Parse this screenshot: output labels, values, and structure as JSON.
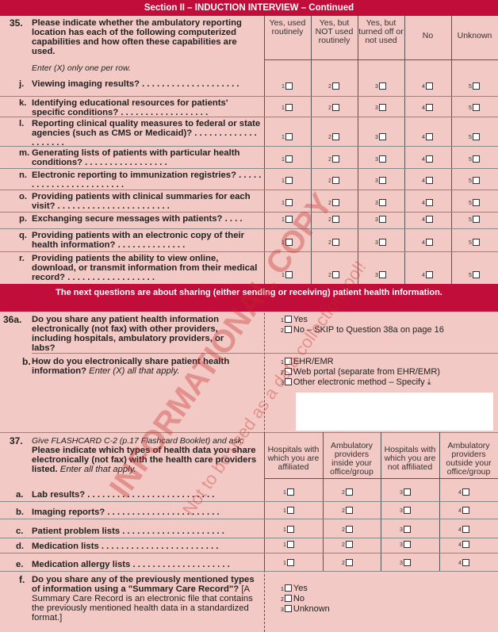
{
  "header": {
    "title": "Section II  –  INDUCTION INTERVIEW  – Continued"
  },
  "q35": {
    "number": "35.",
    "text": "Please indicate whether the ambulatory reporting location has each of the following computerized capabilities and how often these capabilities are used.",
    "instruction": "Enter (X) only one per row.",
    "columns": [
      "Yes, used routinely",
      "Yes, but NOT used routinely",
      "Yes, but turned off or not used",
      "No",
      "Unknown"
    ],
    "rows": [
      {
        "letter": "j.",
        "text": "Viewing imaging results? . . . . . . . . . . . . . . . . . . . ."
      },
      {
        "letter": "k.",
        "text": "Identifying educational resources for patients' specific conditions? . . . . . . . . . . . . . . . . . ."
      },
      {
        "letter": "l.",
        "text": "Reporting clinical quality measures to federal or state agencies (such as CMS or Medicaid)? . . . . . . . . . . . . . . . . . . . ."
      },
      {
        "letter": "m.",
        "text": "Generating lists of patients with particular health conditions? . . . . . . . . . . . . . . . . ."
      },
      {
        "letter": "n.",
        "text": "Electronic reporting to immunization registries? . . . . . . . . . . . . . . . . . . . . . . . ."
      },
      {
        "letter": "o.",
        "text": "Providing patients with clinical summaries for each visit? . . . . . . . . . . . . . . . . . . . . . . ."
      },
      {
        "letter": "p.",
        "text": "Exchanging secure messages with patients? . . . ."
      },
      {
        "letter": "q.",
        "text": "Providing patients with an electronic copy of their health information? . . . . . . . . . . . . . ."
      },
      {
        "letter": "r.",
        "text": "Providing patients the ability to view online, download, or transmit information from their medical record? . . . . . . . . . . . . . . . . . ."
      }
    ]
  },
  "banner": {
    "text": "The next questions are about sharing (either sending or receiving) patient health information."
  },
  "q36a": {
    "number": "36a.",
    "text": "Do you share any patient health information electronically (not fax) with other providers, including hospitals, ambulatory providers, or labs?",
    "options": [
      {
        "code": "1",
        "label": "Yes"
      },
      {
        "code": "2",
        "label": "No – SKIP to Question 38a on page 16"
      }
    ]
  },
  "q36b": {
    "number": "b.",
    "text": "How do you electronically share patient health information?",
    "instruction": "Enter (X) all that apply.",
    "options": [
      {
        "code": "1",
        "label": "EHR/EMR"
      },
      {
        "code": "2",
        "label": "Web portal (separate from EHR/EMR)"
      },
      {
        "code": "3",
        "label": "Other electronic method – Specify ⤓"
      }
    ]
  },
  "q37": {
    "number": "37.",
    "intro": "Give FLASHCARD C-2 (p.17 Flashcard Booklet) and ask:",
    "text": "Please indicate which types of health data you share electronically (not fax) with the health care providers listed.",
    "instruction": "Enter all that apply.",
    "columns": [
      "Hospitals with which you are affiliated",
      "Ambulatory providers inside your office/group",
      "Hospitals with which you are not affiliated",
      "Ambulatory providers outside your office/group"
    ],
    "rows": [
      {
        "letter": "a.",
        "text": "Lab results? . . . . . . . . . . . . . . . . . . . . . . . . . ."
      },
      {
        "letter": "b.",
        "text": "Imaging reports? . . . . . . . . . . . . . . . . . . . . . . ."
      },
      {
        "letter": "c.",
        "text": "Patient problem lists . . . . . . . . . . . . . . . . . . . . ."
      },
      {
        "letter": "d.",
        "text": "Medication lists . . . . . . . . . . . . . . . . . . . . . . . ."
      },
      {
        "letter": "e.",
        "text": "Medication allergy lists . . . . . . . . . . . . . . . . . . . ."
      }
    ]
  },
  "q37f": {
    "letter": "f.",
    "text": "Do you share any of the previously mentioned types of information using a \"Summary Care Record\"?",
    "note": "[A Summary Care Record is an electronic file that contains the previously mentioned health data in a standardized format.]",
    "options": [
      {
        "code": "1",
        "label": "Yes"
      },
      {
        "code": "2",
        "label": "No"
      },
      {
        "code": "3",
        "label": "Unknown"
      }
    ]
  },
  "watermark": {
    "line1": "INFORMATIONAL COPY",
    "line2": "Not to be used as a data collection tool!"
  },
  "colors": {
    "band": "#c00d3a",
    "background": "#f2c9c4"
  }
}
